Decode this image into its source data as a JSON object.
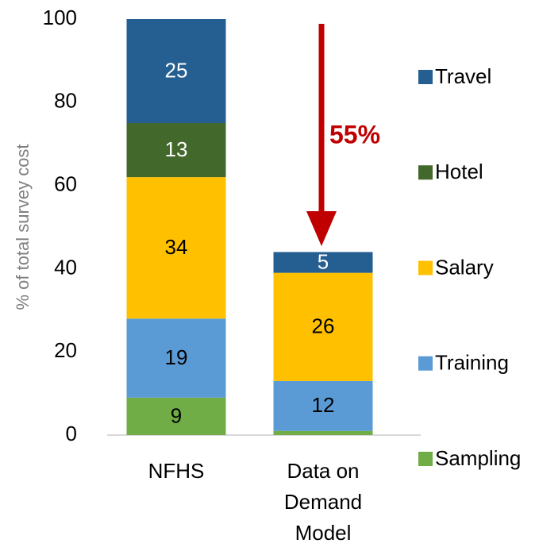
{
  "chart_data": {
    "type": "stacked_bar",
    "categories": [
      "NFHS",
      "Data on Demand Model"
    ],
    "series": [
      {
        "name": "Sampling",
        "color": "#70ad47",
        "values": [
          9,
          1
        ]
      },
      {
        "name": "Training",
        "color": "#5b9bd5",
        "values": [
          19,
          12
        ]
      },
      {
        "name": "Salary",
        "color": "#ffc000",
        "values": [
          34,
          26
        ]
      },
      {
        "name": "Hotel",
        "color": "#43682b",
        "values": [
          13,
          null
        ]
      },
      {
        "name": "Travel",
        "color": "#255e91",
        "values": [
          25,
          5
        ]
      }
    ],
    "ylabel": "% of total survey cost",
    "ylim": [
      0,
      100
    ],
    "yticks": [
      0,
      20,
      40,
      60,
      80,
      100
    ],
    "annotation": "55%",
    "legend": "right"
  }
}
